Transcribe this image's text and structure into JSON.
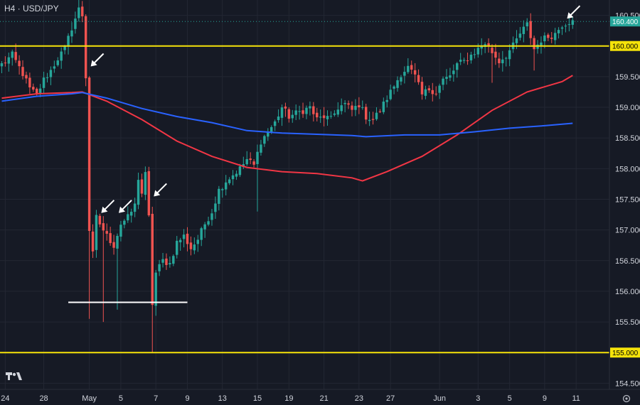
{
  "chart_data": {
    "type": "candlestick",
    "title": "H4 · USD/JPY",
    "symbol": "USD/JPY",
    "timeframe": "H4",
    "ylim": [
      154.4,
      160.75
    ],
    "yticks": [
      154.5,
      155.0,
      155.5,
      156.0,
      156.5,
      157.0,
      157.5,
      158.0,
      158.5,
      159.0,
      159.5,
      160.0,
      160.5
    ],
    "ytick_labels": [
      "154.500",
      "155.000",
      "155.500",
      "156.000",
      "156.500",
      "157.000",
      "157.500",
      "158.000",
      "158.500",
      "159.000",
      "159.500",
      "160.000",
      "160.500"
    ],
    "xticks": [
      {
        "label": "24",
        "bar": 1
      },
      {
        "label": "28",
        "bar": 12
      },
      {
        "label": "May",
        "bar": 25
      },
      {
        "label": "5",
        "bar": 34
      },
      {
        "label": "7",
        "bar": 44
      },
      {
        "label": "9",
        "bar": 53
      },
      {
        "label": "13",
        "bar": 63
      },
      {
        "label": "15",
        "bar": 73
      },
      {
        "label": "19",
        "bar": 82
      },
      {
        "label": "21",
        "bar": 92
      },
      {
        "label": "23",
        "bar": 102
      },
      {
        "label": "27",
        "bar": 111
      },
      {
        "label": "Jun",
        "bar": 125
      },
      {
        "label": "3",
        "bar": 136
      },
      {
        "label": "5",
        "bar": 145
      },
      {
        "label": "9",
        "bar": 155
      },
      {
        "label": "11",
        "bar": 164
      }
    ],
    "x_range": [
      0,
      174
    ],
    "last_price": 160.4,
    "last_price_label": "160.400",
    "levels": [
      {
        "price": 160.0,
        "label": "160.000",
        "color": "#f5e30a"
      },
      {
        "price": 155.0,
        "label": "155.000",
        "color": "#f5e30a"
      }
    ],
    "support_segment": {
      "price": 155.82,
      "bar_start": 19,
      "bar_end": 53,
      "color": "#ffffff"
    },
    "annotations": [
      {
        "type": "arrow",
        "bar": 25,
        "price": 159.62
      },
      {
        "type": "arrow",
        "bar": 28,
        "price": 157.23
      },
      {
        "type": "arrow",
        "bar": 33,
        "price": 157.23
      },
      {
        "type": "arrow",
        "bar": 43,
        "price": 157.5
      },
      {
        "type": "arrow",
        "bar": 161,
        "price": 160.4
      }
    ],
    "moving_averages": [
      {
        "color": "#f23645",
        "points": [
          [
            0,
            159.15
          ],
          [
            10,
            159.22
          ],
          [
            20,
            159.24
          ],
          [
            23,
            159.25
          ],
          [
            30,
            159.1
          ],
          [
            40,
            158.8
          ],
          [
            50,
            158.45
          ],
          [
            60,
            158.2
          ],
          [
            70,
            158.02
          ],
          [
            80,
            157.95
          ],
          [
            90,
            157.92
          ],
          [
            100,
            157.85
          ],
          [
            103,
            157.8
          ],
          [
            110,
            157.95
          ],
          [
            120,
            158.2
          ],
          [
            130,
            158.55
          ],
          [
            140,
            158.95
          ],
          [
            150,
            159.25
          ],
          [
            160,
            159.42
          ],
          [
            163,
            159.52
          ]
        ]
      },
      {
        "color": "#2962ff",
        "points": [
          [
            0,
            159.1
          ],
          [
            10,
            159.18
          ],
          [
            20,
            159.22
          ],
          [
            23,
            159.24
          ],
          [
            30,
            159.15
          ],
          [
            40,
            158.98
          ],
          [
            50,
            158.85
          ],
          [
            60,
            158.75
          ],
          [
            70,
            158.62
          ],
          [
            80,
            158.58
          ],
          [
            90,
            158.56
          ],
          [
            100,
            158.54
          ],
          [
            104,
            158.52
          ],
          [
            115,
            158.55
          ],
          [
            125,
            158.55
          ],
          [
            135,
            158.6
          ],
          [
            145,
            158.66
          ],
          [
            155,
            158.7
          ],
          [
            163,
            158.74
          ]
        ]
      }
    ],
    "anchors": [
      [
        0,
        159.7
      ],
      [
        3,
        159.85
      ],
      [
        6,
        159.55
      ],
      [
        8,
        159.3
      ],
      [
        10,
        159.2
      ],
      [
        12,
        159.45
      ],
      [
        14,
        159.6
      ],
      [
        16,
        159.8
      ],
      [
        18,
        159.95
      ],
      [
        20,
        160.3
      ],
      [
        22,
        160.6
      ],
      [
        23,
        160.5
      ],
      [
        24,
        159.5
      ],
      [
        25,
        157.0
      ],
      [
        26,
        156.6
      ],
      [
        27,
        157.2
      ],
      [
        28,
        157.1
      ],
      [
        30,
        156.9
      ],
      [
        32,
        156.75
      ],
      [
        34,
        157.1
      ],
      [
        36,
        157.2
      ],
      [
        38,
        157.4
      ],
      [
        39,
        157.85
      ],
      [
        40,
        157.6
      ],
      [
        41,
        157.9
      ],
      [
        42,
        157.2
      ],
      [
        43,
        155.8
      ],
      [
        44,
        156.3
      ],
      [
        46,
        156.5
      ],
      [
        48,
        156.45
      ],
      [
        50,
        156.8
      ],
      [
        52,
        156.9
      ],
      [
        54,
        156.7
      ],
      [
        56,
        156.85
      ],
      [
        58,
        157.1
      ],
      [
        60,
        157.3
      ],
      [
        62,
        157.65
      ],
      [
        64,
        157.8
      ],
      [
        66,
        157.9
      ],
      [
        68,
        158.0
      ],
      [
        70,
        158.15
      ],
      [
        72,
        158.05
      ],
      [
        74,
        158.45
      ],
      [
        76,
        158.6
      ],
      [
        78,
        158.75
      ],
      [
        80,
        159.0
      ],
      [
        82,
        158.85
      ],
      [
        84,
        158.9
      ],
      [
        86,
        158.95
      ],
      [
        88,
        159.0
      ],
      [
        90,
        158.8
      ],
      [
        92,
        158.85
      ],
      [
        94,
        158.8
      ],
      [
        96,
        159.0
      ],
      [
        98,
        159.05
      ],
      [
        100,
        158.95
      ],
      [
        102,
        159.05
      ],
      [
        104,
        158.85
      ],
      [
        106,
        158.8
      ],
      [
        108,
        158.95
      ],
      [
        110,
        159.15
      ],
      [
        112,
        159.35
      ],
      [
        114,
        159.55
      ],
      [
        116,
        159.65
      ],
      [
        118,
        159.5
      ],
      [
        120,
        159.2
      ],
      [
        122,
        159.3
      ],
      [
        124,
        159.25
      ],
      [
        126,
        159.45
      ],
      [
        128,
        159.5
      ],
      [
        130,
        159.7
      ],
      [
        132,
        159.75
      ],
      [
        134,
        159.85
      ],
      [
        136,
        159.95
      ],
      [
        138,
        160.05
      ],
      [
        140,
        159.9
      ],
      [
        142,
        159.75
      ],
      [
        144,
        159.85
      ],
      [
        146,
        160.0
      ],
      [
        148,
        160.2
      ],
      [
        150,
        160.35
      ],
      [
        152,
        159.95
      ],
      [
        154,
        160.1
      ],
      [
        156,
        160.15
      ],
      [
        158,
        160.2
      ],
      [
        160,
        160.35
      ],
      [
        162,
        160.4
      ],
      [
        163,
        160.42
      ]
    ],
    "spikes": [
      {
        "bar": 22,
        "high": 160.75
      },
      {
        "bar": 25,
        "low": 155.55
      },
      {
        "bar": 29,
        "low": 155.5
      },
      {
        "bar": 33,
        "low": 155.7
      },
      {
        "bar": 43,
        "low": 155.0
      },
      {
        "bar": 44,
        "low": 155.6
      },
      {
        "bar": 73,
        "low": 157.3
      },
      {
        "bar": 140,
        "low": 159.4
      },
      {
        "bar": 152,
        "low": 159.6
      }
    ],
    "colors": {
      "background": "#161a25",
      "grid": "#232733",
      "up": "#26a69a",
      "down": "#ef5350",
      "text": "#d1d4dc",
      "last_price_badge": "#26a69a"
    }
  }
}
